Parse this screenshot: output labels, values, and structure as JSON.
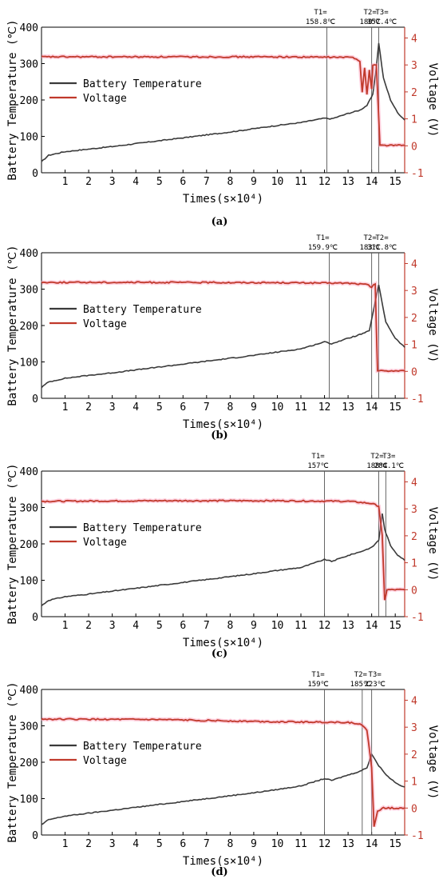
{
  "chart_data": [
    {
      "type": "line",
      "panel_label": "(a)",
      "ylabel": "Battery Temperature (℃)",
      "y2label": "Voltage (V)",
      "xlabel": "Times(s×10⁴)",
      "xlim": [
        0,
        15.4
      ],
      "ylim": [
        0,
        400
      ],
      "y2lim": [
        -1,
        4.4
      ],
      "xticks": [
        "1",
        "2",
        "3",
        "4",
        "5",
        "6",
        "7",
        "8",
        "9",
        "10",
        "11",
        "12",
        "13",
        "14",
        "15"
      ],
      "yticks": [
        "0",
        "100",
        "200",
        "300",
        "400"
      ],
      "y2ticks": [
        "-1",
        "0",
        "1",
        "2",
        "3",
        "4"
      ],
      "legend_position": "upper-left",
      "series": [
        {
          "name": "Battery Temperature",
          "color": "#3a3a3a",
          "x": [
            0,
            0.3,
            1,
            2,
            3,
            4,
            5,
            6,
            7,
            8,
            9,
            10,
            11,
            12,
            12.3,
            13,
            13.5,
            13.8,
            14.05,
            14.2,
            14.3,
            14.5,
            14.8,
            15.1,
            15.4
          ],
          "y": [
            30,
            48,
            58,
            65,
            72,
            80,
            88,
            96,
            104,
            112,
            121,
            130,
            138,
            150,
            148,
            163,
            172,
            185,
            215,
            290,
            357,
            260,
            200,
            165,
            145
          ]
        },
        {
          "name": "Voltage",
          "color": "#c0392b",
          "x": [
            0,
            5,
            10,
            13.2,
            13.5,
            13.6,
            13.7,
            13.8,
            13.9,
            14.0,
            14.05,
            14.2,
            14.35,
            15,
            15.4
          ],
          "y": [
            3.3,
            3.3,
            3.3,
            3.28,
            3.15,
            2.0,
            2.9,
            1.9,
            2.8,
            2.1,
            3.0,
            3.0,
            0.02,
            0.02,
            0.02
          ]
        }
      ],
      "annotations": [
        {
          "label": "T1=",
          "value": "158.8℃",
          "x": 12.1
        },
        {
          "label": "T2=",
          "value": "180℃",
          "x": 14.0
        },
        {
          "label": "T3=",
          "value": "357.4℃",
          "x": 14.3
        }
      ]
    },
    {
      "type": "line",
      "panel_label": "(b)",
      "ylabel": "Battery Temperature (℃)",
      "y2label": "Voltage (V)",
      "xlabel": "Times(s×10⁴)",
      "xlim": [
        0,
        15.4
      ],
      "ylim": [
        0,
        400
      ],
      "y2lim": [
        -1,
        4.4
      ],
      "xticks": [
        "1",
        "2",
        "3",
        "4",
        "5",
        "6",
        "7",
        "8",
        "9",
        "10",
        "11",
        "12",
        "13",
        "14",
        "15"
      ],
      "yticks": [
        "0",
        "100",
        "200",
        "300",
        "400"
      ],
      "y2ticks": [
        "-1",
        "0",
        "1",
        "2",
        "3",
        "4"
      ],
      "legend_position": "upper-left",
      "series": [
        {
          "name": "Battery Temperature",
          "color": "#3a3a3a",
          "x": [
            0,
            0.3,
            1,
            2,
            3,
            4,
            5,
            6,
            7,
            8,
            9,
            10,
            11,
            12,
            12.3,
            13,
            13.5,
            13.9,
            14.1,
            14.3,
            14.6,
            15,
            15.4
          ],
          "y": [
            30,
            45,
            55,
            63,
            70,
            78,
            86,
            94,
            102,
            110,
            118,
            127,
            136,
            155,
            150,
            165,
            175,
            185,
            250,
            311,
            210,
            165,
            140
          ]
        },
        {
          "name": "Voltage",
          "color": "#c0392b",
          "x": [
            0,
            5,
            10,
            13,
            13.8,
            14.0,
            14.15,
            14.25,
            15,
            15.4
          ],
          "y": [
            3.3,
            3.3,
            3.29,
            3.27,
            3.22,
            3.12,
            3.25,
            0.02,
            0.02,
            0.02
          ]
        }
      ],
      "annotations": [
        {
          "label": "T1=",
          "value": "159.9℃",
          "x": 12.2
        },
        {
          "label": "T2=",
          "value": "183℃",
          "x": 14.0
        },
        {
          "label": "T2=",
          "value": "311.8℃",
          "x": 14.3
        }
      ]
    },
    {
      "type": "line",
      "panel_label": "(c)",
      "ylabel": "Battery Temperature (℃)",
      "y2label": "Voltage (V)",
      "xlabel": "Times(s×10⁴)",
      "xlim": [
        0,
        15.4
      ],
      "ylim": [
        0,
        400
      ],
      "y2lim": [
        -1,
        4.4
      ],
      "xticks": [
        "1",
        "2",
        "3",
        "4",
        "5",
        "6",
        "7",
        "8",
        "9",
        "10",
        "11",
        "12",
        "13",
        "14",
        "15"
      ],
      "yticks": [
        "0",
        "100",
        "200",
        "300",
        "400"
      ],
      "y2ticks": [
        "-1",
        "0",
        "1",
        "2",
        "3",
        "4"
      ],
      "legend_position": "upper-left",
      "series": [
        {
          "name": "Battery Temperature",
          "color": "#3a3a3a",
          "x": [
            0,
            0.3,
            1,
            2,
            3,
            4,
            5,
            6,
            7,
            8,
            9,
            10,
            11,
            12,
            12.3,
            13,
            13.5,
            14,
            14.3,
            14.45,
            14.55,
            14.8,
            15.1,
            15.4
          ],
          "y": [
            30,
            45,
            55,
            62,
            70,
            78,
            86,
            94,
            102,
            110,
            118,
            127,
            135,
            157,
            152,
            168,
            178,
            190,
            210,
            284,
            240,
            195,
            170,
            155
          ]
        },
        {
          "name": "Voltage",
          "color": "#c0392b",
          "x": [
            0,
            5,
            10,
            13,
            14,
            14.3,
            14.45,
            14.55,
            14.65,
            15,
            15.4
          ],
          "y": [
            3.28,
            3.3,
            3.3,
            3.28,
            3.2,
            3.1,
            2.0,
            -0.4,
            0.0,
            0.0,
            0.0
          ]
        }
      ],
      "annotations": [
        {
          "label": "T1=",
          "value": "157℃",
          "x": 12.0
        },
        {
          "label": "T2=",
          "value": "188℃",
          "x": 14.3
        },
        {
          "label": "T3=",
          "value": "284.1℃",
          "x": 14.6
        }
      ]
    },
    {
      "type": "line",
      "panel_label": "(d)",
      "ylabel": "Battery Temperature (℃)",
      "y2label": "Voltage (V)",
      "xlabel": "Times(s×10⁴)",
      "xlim": [
        0,
        15.4
      ],
      "ylim": [
        0,
        400
      ],
      "y2lim": [
        -1,
        4.4
      ],
      "xticks": [
        "1",
        "2",
        "3",
        "4",
        "5",
        "6",
        "7",
        "8",
        "9",
        "10",
        "11",
        "12",
        "13",
        "14",
        "15"
      ],
      "yticks": [
        "0",
        "100",
        "200",
        "300",
        "400"
      ],
      "y2ticks": [
        "-1",
        "0",
        "1",
        "2",
        "3",
        "4"
      ],
      "legend_position": "upper-left",
      "series": [
        {
          "name": "Battery Temperature",
          "color": "#3a3a3a",
          "x": [
            0,
            0.3,
            1,
            2,
            3,
            4,
            5,
            6,
            7,
            8,
            9,
            10,
            11,
            12,
            12.3,
            13,
            13.5,
            13.8,
            14.0,
            14.3,
            14.7,
            15.1,
            15.4
          ],
          "y": [
            28,
            42,
            52,
            60,
            68,
            76,
            84,
            92,
            100,
            108,
            116,
            125,
            135,
            155,
            150,
            165,
            175,
            185,
            223,
            190,
            160,
            140,
            132
          ]
        },
        {
          "name": "Voltage",
          "color": "#c0392b",
          "x": [
            0,
            5,
            10,
            13,
            13.5,
            13.8,
            14.0,
            14.1,
            14.25,
            14.5,
            15,
            15.4
          ],
          "y": [
            3.3,
            3.28,
            3.2,
            3.18,
            3.12,
            2.9,
            1.5,
            -0.7,
            -0.1,
            0.0,
            0.0,
            0.0
          ]
        }
      ],
      "annotations": [
        {
          "label": "T1=",
          "value": "159℃",
          "x": 12.0
        },
        {
          "label": "T2=",
          "value": "185℃",
          "x": 13.6
        },
        {
          "label": "T3=",
          "value": "223℃",
          "x": 14.0
        }
      ]
    }
  ]
}
